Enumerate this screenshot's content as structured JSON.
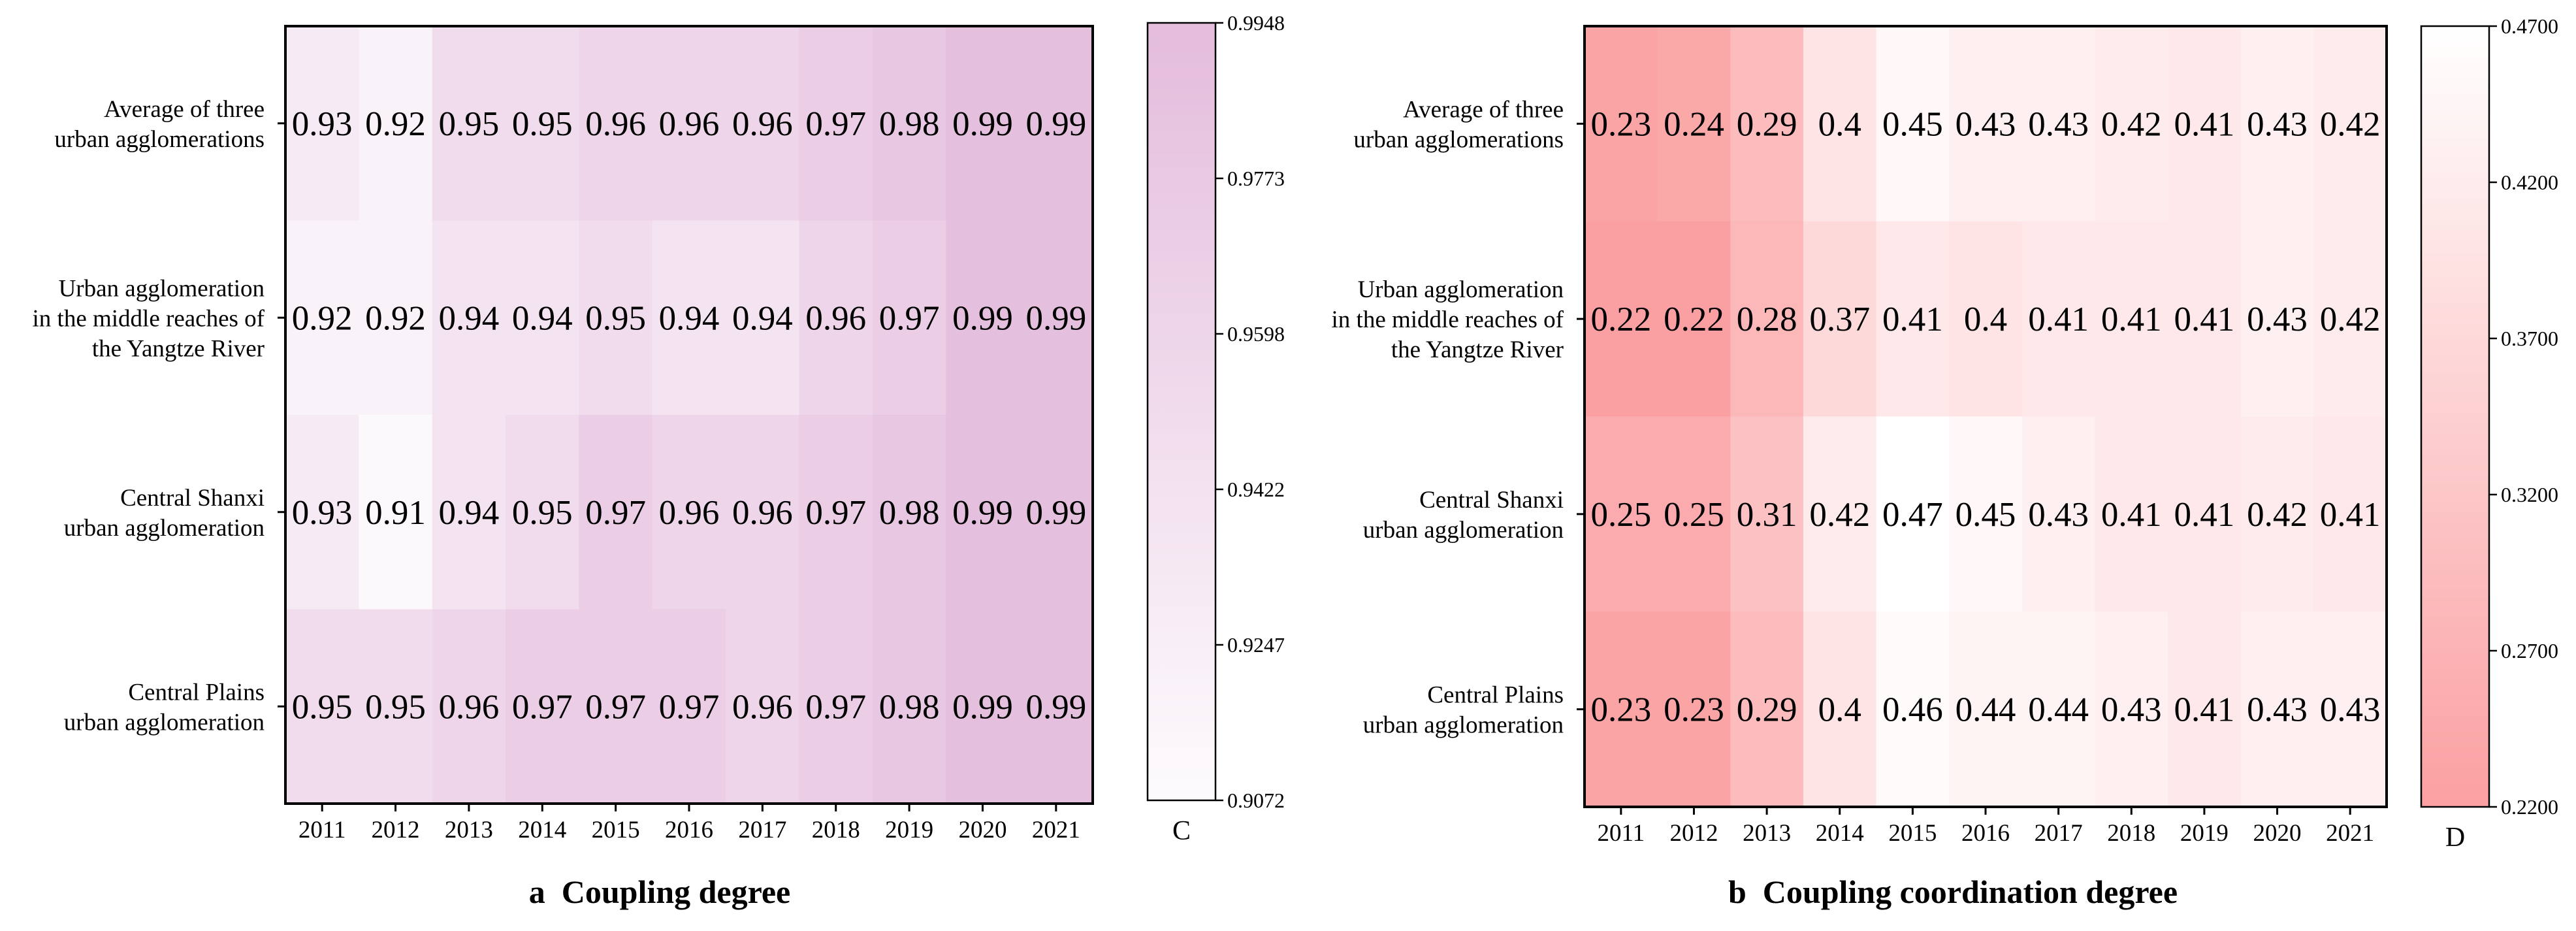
{
  "chart_data": [
    {
      "type": "heatmap",
      "title": "a  Coupling degree",
      "xlabel": "",
      "ylabel": "",
      "colorbar_label": "C",
      "color_low": "#fdfbfd",
      "color_high": "#e4bcdc",
      "vmin": 0.9072,
      "vmax": 0.9948,
      "colorbar_ticks": [
        "0.9948",
        "0.9773",
        "0.9598",
        "0.9422",
        "0.9247",
        "0.9072"
      ],
      "x": [
        "2011",
        "2012",
        "2013",
        "2014",
        "2015",
        "2016",
        "2017",
        "2018",
        "2019",
        "2020",
        "2021"
      ],
      "rows": [
        {
          "label": [
            "Average of three",
            "urban agglomerations"
          ],
          "values": [
            0.93,
            0.92,
            0.95,
            0.95,
            0.96,
            0.96,
            0.96,
            0.97,
            0.98,
            0.99,
            0.99
          ]
        },
        {
          "label": [
            "Urban agglomeration",
            "in the middle reaches of",
            "the Yangtze River"
          ],
          "values": [
            0.92,
            0.92,
            0.94,
            0.94,
            0.95,
            0.94,
            0.94,
            0.96,
            0.97,
            0.99,
            0.99
          ]
        },
        {
          "label": [
            "Central Shanxi",
            "urban agglomeration"
          ],
          "values": [
            0.93,
            0.91,
            0.94,
            0.95,
            0.97,
            0.96,
            0.96,
            0.97,
            0.98,
            0.99,
            0.99
          ]
        },
        {
          "label": [
            "Central Plains",
            "urban agglomeration"
          ],
          "values": [
            0.95,
            0.95,
            0.96,
            0.97,
            0.97,
            0.97,
            0.96,
            0.97,
            0.98,
            0.99,
            0.99
          ]
        }
      ]
    },
    {
      "type": "heatmap",
      "title": "b  Coupling coordination degree",
      "xlabel": "",
      "ylabel": "",
      "colorbar_label": "D",
      "color_low": "#fba0a2",
      "color_high": "#ffffff",
      "vmin": 0.22,
      "vmax": 0.47,
      "colorbar_ticks": [
        "0.4700",
        "0.4200",
        "0.3700",
        "0.3200",
        "0.2700",
        "0.2200"
      ],
      "x": [
        "2011",
        "2012",
        "2013",
        "2014",
        "2015",
        "2016",
        "2017",
        "2018",
        "2019",
        "2020",
        "2021"
      ],
      "rows": [
        {
          "label": [
            "Average of three",
            "urban agglomerations"
          ],
          "values": [
            0.23,
            0.24,
            0.29,
            0.4,
            0.45,
            0.43,
            0.43,
            0.42,
            0.41,
            0.43,
            0.42
          ]
        },
        {
          "label": [
            "Urban agglomeration",
            "in the middle reaches of",
            "the Yangtze River"
          ],
          "values": [
            0.22,
            0.22,
            0.28,
            0.37,
            0.41,
            0.4,
            0.41,
            0.41,
            0.41,
            0.43,
            0.42
          ]
        },
        {
          "label": [
            "Central Shanxi",
            "urban agglomeration"
          ],
          "values": [
            0.25,
            0.25,
            0.31,
            0.42,
            0.47,
            0.45,
            0.43,
            0.41,
            0.41,
            0.42,
            0.41
          ]
        },
        {
          "label": [
            "Central Plains",
            "urban agglomeration"
          ],
          "values": [
            0.23,
            0.23,
            0.29,
            0.4,
            0.46,
            0.44,
            0.44,
            0.43,
            0.41,
            0.43,
            0.43
          ]
        }
      ]
    }
  ]
}
